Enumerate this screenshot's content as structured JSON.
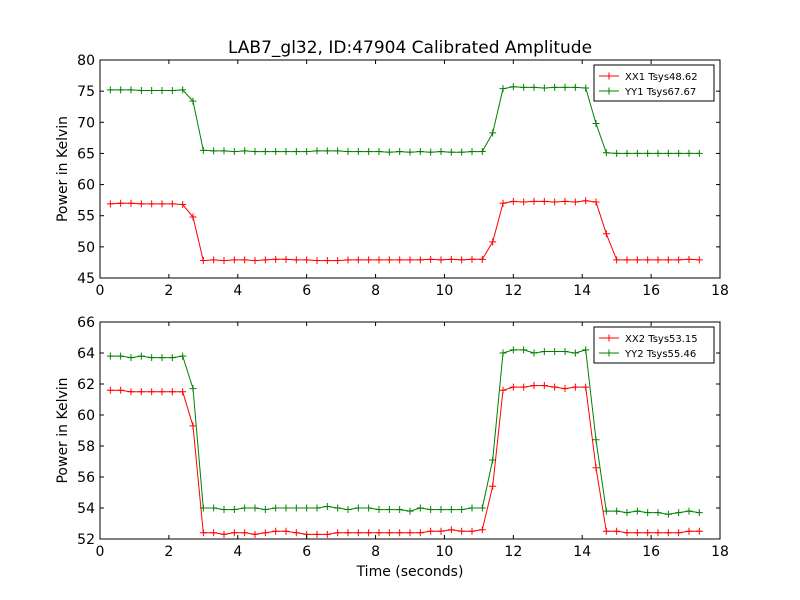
{
  "title": "LAB7_gl32, ID:47904 Calibrated Amplitude",
  "xlabel": "Time (seconds)",
  "chart_data": [
    {
      "type": "line",
      "ylabel": "Power in Kelvin",
      "xlim": [
        0,
        18
      ],
      "ylim": [
        45,
        80
      ],
      "xticks": [
        0,
        2,
        4,
        6,
        8,
        10,
        12,
        14,
        16,
        18
      ],
      "yticks": [
        45,
        50,
        55,
        60,
        65,
        70,
        75,
        80
      ],
      "legend": "top-right",
      "x": [
        0.3,
        0.6,
        0.9,
        1.2,
        1.5,
        1.8,
        2.1,
        2.4,
        2.7,
        3.0,
        3.3,
        3.6,
        3.9,
        4.2,
        4.5,
        4.8,
        5.1,
        5.4,
        5.7,
        6.0,
        6.3,
        6.6,
        6.9,
        7.2,
        7.5,
        7.8,
        8.1,
        8.4,
        8.7,
        9.0,
        9.3,
        9.6,
        9.9,
        10.2,
        10.5,
        10.8,
        11.1,
        11.4,
        11.7,
        12.0,
        12.3,
        12.6,
        12.9,
        13.2,
        13.5,
        13.8,
        14.1,
        14.4,
        14.7,
        15.0,
        15.3,
        15.6,
        15.9,
        16.2,
        16.5,
        16.8,
        17.1,
        17.4
      ],
      "series": [
        {
          "name": "XX1 Tsys48.62",
          "color": "#ff0000",
          "values": [
            56.9,
            57.0,
            57.0,
            56.9,
            56.9,
            56.9,
            56.9,
            56.8,
            54.8,
            47.8,
            47.9,
            47.8,
            47.9,
            47.9,
            47.8,
            47.9,
            48.0,
            48.0,
            47.9,
            47.9,
            47.8,
            47.8,
            47.8,
            47.9,
            47.9,
            47.9,
            47.9,
            47.9,
            47.9,
            47.9,
            47.9,
            48.0,
            47.9,
            48.0,
            47.9,
            48.0,
            48.0,
            50.8,
            57.0,
            57.3,
            57.2,
            57.3,
            57.3,
            57.2,
            57.3,
            57.2,
            57.4,
            57.2,
            52.1,
            47.9,
            47.9,
            47.9,
            47.9,
            47.9,
            47.9,
            47.9,
            48.0,
            47.9
          ]
        },
        {
          "name": "YY1 Tsys67.67",
          "color": "#008000",
          "values": [
            75.2,
            75.2,
            75.2,
            75.1,
            75.1,
            75.1,
            75.1,
            75.2,
            73.4,
            65.5,
            65.4,
            65.4,
            65.3,
            65.4,
            65.3,
            65.3,
            65.3,
            65.3,
            65.3,
            65.3,
            65.4,
            65.4,
            65.4,
            65.3,
            65.3,
            65.3,
            65.3,
            65.2,
            65.3,
            65.2,
            65.3,
            65.2,
            65.3,
            65.2,
            65.2,
            65.3,
            65.3,
            68.3,
            75.4,
            75.7,
            75.6,
            75.6,
            75.5,
            75.6,
            75.6,
            75.6,
            75.5,
            69.8,
            65.1,
            65.0,
            65.0,
            65.0,
            65.0,
            65.0,
            65.0,
            65.0,
            65.0,
            65.0
          ]
        }
      ]
    },
    {
      "type": "line",
      "ylabel": "Power in Kelvin",
      "xlim": [
        0,
        18
      ],
      "ylim": [
        52,
        66
      ],
      "xticks": [
        0,
        2,
        4,
        6,
        8,
        10,
        12,
        14,
        16,
        18
      ],
      "yticks": [
        52,
        54,
        56,
        58,
        60,
        62,
        64,
        66
      ],
      "legend": "top-right",
      "x": [
        0.3,
        0.6,
        0.9,
        1.2,
        1.5,
        1.8,
        2.1,
        2.4,
        2.7,
        3.0,
        3.3,
        3.6,
        3.9,
        4.2,
        4.5,
        4.8,
        5.1,
        5.4,
        5.7,
        6.0,
        6.3,
        6.6,
        6.9,
        7.2,
        7.5,
        7.8,
        8.1,
        8.4,
        8.7,
        9.0,
        9.3,
        9.6,
        9.9,
        10.2,
        10.5,
        10.8,
        11.1,
        11.4,
        11.7,
        12.0,
        12.3,
        12.6,
        12.9,
        13.2,
        13.5,
        13.8,
        14.1,
        14.4,
        14.7,
        15.0,
        15.3,
        15.6,
        15.9,
        16.2,
        16.5,
        16.8,
        17.1,
        17.4
      ],
      "series": [
        {
          "name": "XX2 Tsys53.15",
          "color": "#ff0000",
          "values": [
            61.6,
            61.6,
            61.5,
            61.5,
            61.5,
            61.5,
            61.5,
            61.5,
            59.3,
            52.4,
            52.4,
            52.3,
            52.4,
            52.4,
            52.3,
            52.4,
            52.5,
            52.5,
            52.4,
            52.3,
            52.3,
            52.3,
            52.4,
            52.4,
            52.4,
            52.4,
            52.4,
            52.4,
            52.4,
            52.4,
            52.4,
            52.5,
            52.5,
            52.6,
            52.5,
            52.5,
            52.6,
            55.4,
            61.6,
            61.8,
            61.8,
            61.9,
            61.9,
            61.8,
            61.7,
            61.8,
            61.8,
            56.6,
            52.5,
            52.5,
            52.4,
            52.4,
            52.4,
            52.4,
            52.4,
            52.4,
            52.5,
            52.5
          ]
        },
        {
          "name": "YY2 Tsys55.46",
          "color": "#008000",
          "values": [
            63.8,
            63.8,
            63.7,
            63.8,
            63.7,
            63.7,
            63.7,
            63.8,
            61.7,
            54.0,
            54.0,
            53.9,
            53.9,
            54.0,
            54.0,
            53.9,
            54.0,
            54.0,
            54.0,
            54.0,
            54.0,
            54.1,
            54.0,
            53.9,
            54.0,
            54.0,
            53.9,
            53.9,
            53.9,
            53.8,
            54.0,
            53.9,
            53.9,
            53.9,
            53.9,
            54.0,
            54.0,
            57.1,
            64.0,
            64.2,
            64.2,
            64.0,
            64.1,
            64.1,
            64.1,
            64.0,
            64.2,
            58.4,
            53.8,
            53.8,
            53.7,
            53.8,
            53.7,
            53.7,
            53.6,
            53.7,
            53.8,
            53.7
          ]
        }
      ]
    }
  ]
}
